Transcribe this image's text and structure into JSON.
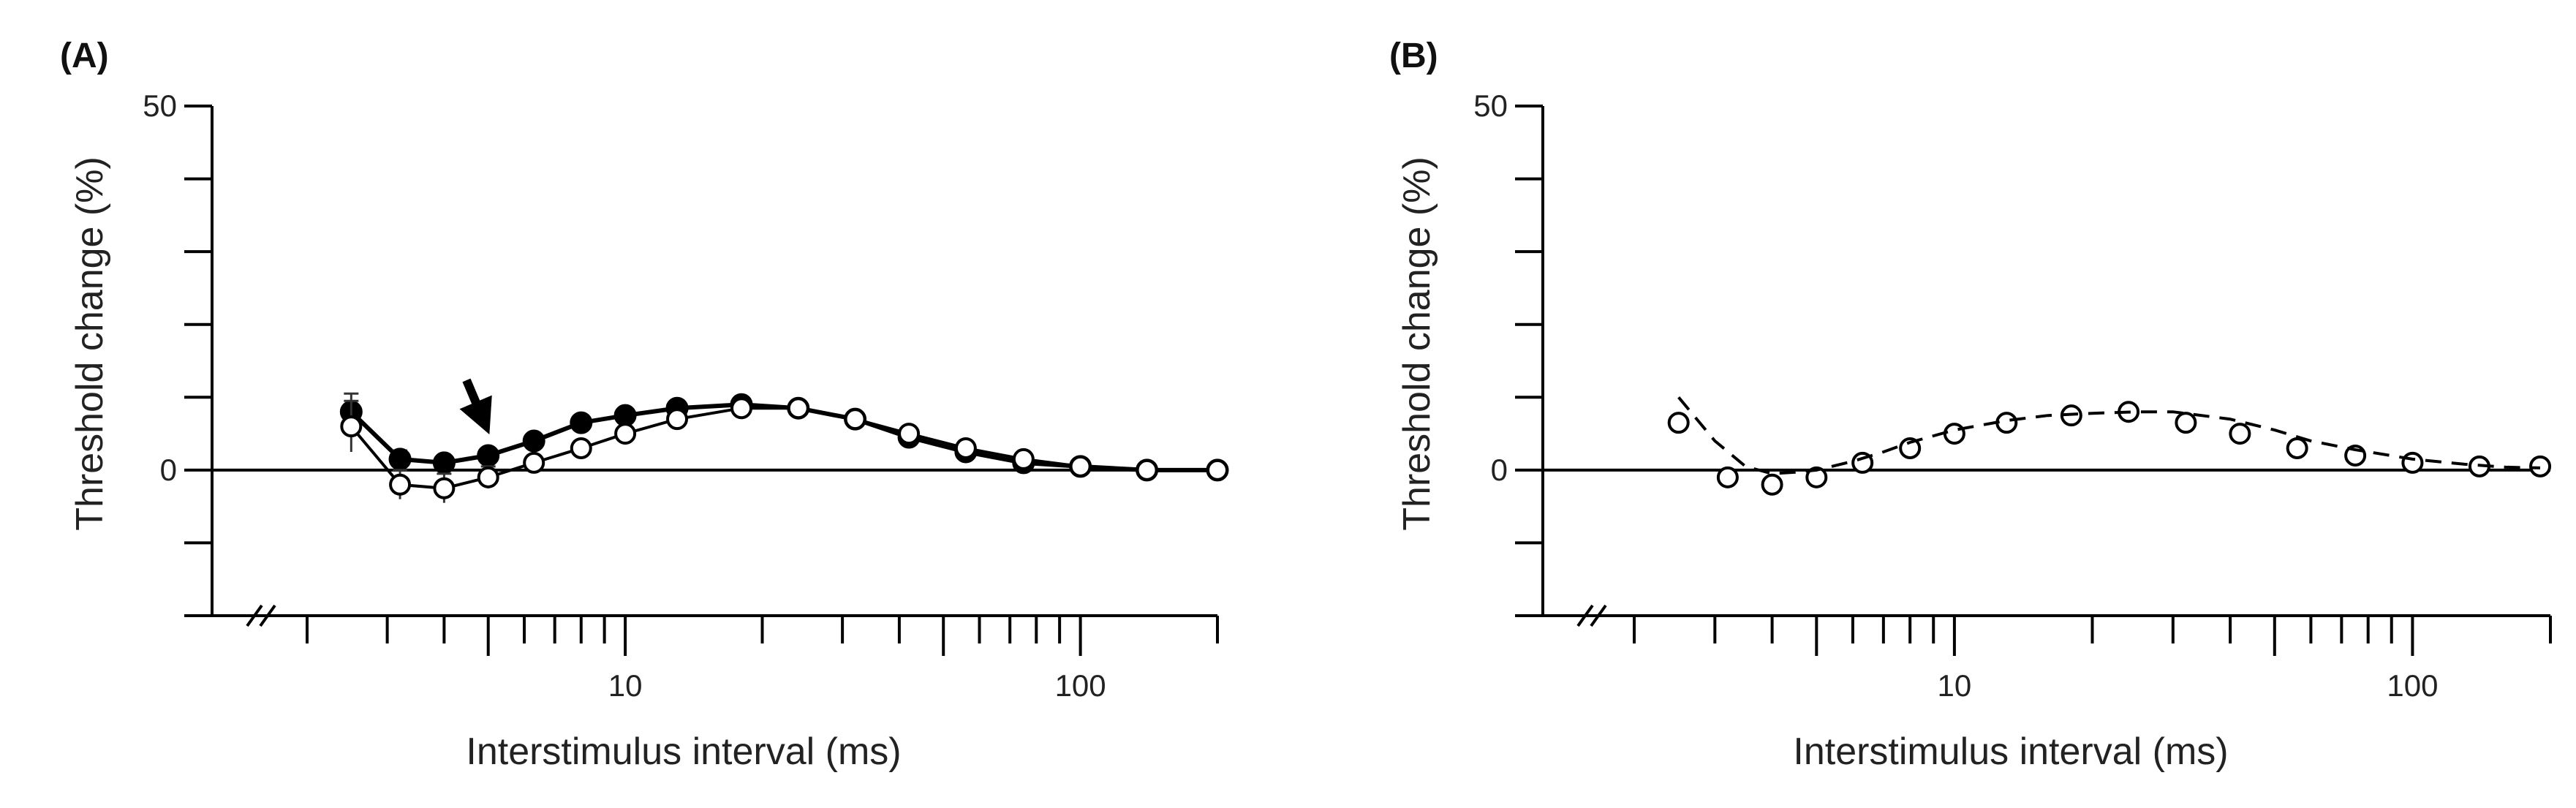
{
  "figure": {
    "panels": [
      {
        "id": "A",
        "label": "(A)"
      },
      {
        "id": "B",
        "label": "(B)"
      }
    ]
  },
  "chart_data": [
    {
      "panel": "(A)",
      "type": "line",
      "title": "",
      "xlabel": "Interstimulus interval (ms)",
      "ylabel": "Threshold change (%)",
      "xscale": "log",
      "xlim": [
        2,
        200
      ],
      "ylim": [
        -20,
        50
      ],
      "xticks_labeled": [
        10,
        100
      ],
      "yticks_labeled": [
        0,
        50
      ],
      "axis_break": true,
      "annotation": "arrow pointing down at ~5 ms",
      "series": [
        {
          "name": "filled circles",
          "marker": "filled-circle",
          "x": [
            2.5,
            3.2,
            4,
            5,
            6.3,
            8,
            10,
            13,
            18,
            24,
            32,
            42,
            56,
            75,
            100,
            140,
            200
          ],
          "y": [
            8,
            1.5,
            1,
            2,
            4,
            6.5,
            7.5,
            8.5,
            9,
            8.5,
            7,
            4.5,
            2.5,
            1,
            0.5,
            0,
            0
          ],
          "err": [
            2.5,
            1.2,
            1,
            1,
            1,
            1,
            1,
            1,
            1,
            1,
            1,
            1,
            1,
            0.8,
            0.6,
            0.5,
            0.5
          ]
        },
        {
          "name": "open circles",
          "marker": "open-circle",
          "x": [
            2.5,
            3.2,
            4,
            5,
            6.3,
            8,
            10,
            13,
            18,
            24,
            32,
            42,
            56,
            75,
            100,
            140,
            200
          ],
          "y": [
            6,
            -2,
            -2.5,
            -1,
            1,
            3,
            5,
            7,
            8.5,
            8.5,
            7,
            5,
            3,
            1.5,
            0.5,
            0,
            0
          ],
          "err": [
            3.5,
            2,
            2,
            1.5,
            1,
            1,
            1,
            1,
            1,
            1,
            1,
            1,
            1,
            0.8,
            0.6,
            0.5,
            0.5
          ]
        }
      ]
    },
    {
      "panel": "(B)",
      "type": "scatter",
      "title": "",
      "xlabel": "Interstimulus interval (ms)",
      "ylabel": "Threshold change (%)",
      "xscale": "log",
      "xlim": [
        2,
        200
      ],
      "ylim": [
        -20,
        50
      ],
      "xticks_labeled": [
        10,
        100
      ],
      "yticks_labeled": [
        0,
        50
      ],
      "axis_break": true,
      "series": [
        {
          "name": "open circles",
          "marker": "open-circle",
          "x": [
            2.5,
            3.2,
            4,
            5,
            6.3,
            8,
            10,
            13,
            18,
            24,
            32,
            42,
            56,
            75,
            100,
            140,
            190
          ],
          "y": [
            6.5,
            -1,
            -2,
            -1,
            1,
            3,
            5,
            6.5,
            7.5,
            8,
            6.5,
            5,
            3,
            2,
            1,
            0.5,
            0.5
          ]
        },
        {
          "name": "model fit",
          "style": "dashed-line",
          "x": [
            2.5,
            3,
            3.5,
            4,
            4.5,
            5,
            6,
            7,
            8,
            10,
            13,
            16,
            20,
            25,
            30,
            40,
            50,
            60,
            75,
            100,
            130,
            160,
            190
          ],
          "y": [
            10,
            4,
            0.5,
            -0.5,
            -0.3,
            0,
            1.2,
            2.5,
            3.8,
            5.5,
            6.8,
            7.5,
            7.8,
            8,
            8,
            7,
            5.5,
            4,
            2.8,
            1.5,
            0.8,
            0.4,
            0.3
          ]
        }
      ]
    }
  ]
}
